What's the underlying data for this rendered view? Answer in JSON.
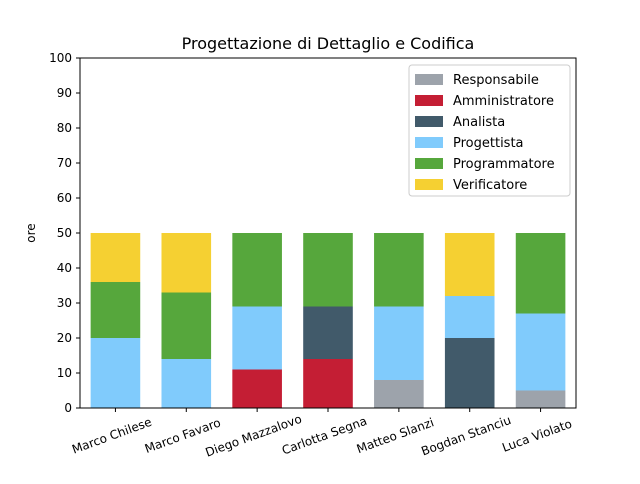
{
  "chart_data": {
    "type": "bar",
    "stacked": true,
    "title": "Progettazione di Dettaglio e Codifica",
    "xlabel": "",
    "ylabel": "ore",
    "ylim": [
      0,
      100
    ],
    "yticks": [
      0,
      10,
      20,
      30,
      40,
      50,
      60,
      70,
      80,
      90,
      100
    ],
    "categories": [
      "Marco Chilese",
      "Marco Favaro",
      "Diego Mazzalovo",
      "Carlotta Segna",
      "Matteo Slanzi",
      "Bogdan Stanciu",
      "Luca Violato"
    ],
    "series": [
      {
        "name": "Responsabile",
        "color": "#9da3ab",
        "values": [
          0,
          0,
          0,
          0,
          8,
          0,
          5
        ]
      },
      {
        "name": "Amministratore",
        "color": "#c41e34",
        "values": [
          0,
          0,
          11,
          14,
          0,
          0,
          0
        ]
      },
      {
        "name": "Analista",
        "color": "#415a6a",
        "values": [
          0,
          0,
          0,
          15,
          0,
          20,
          0
        ]
      },
      {
        "name": "Progettista",
        "color": "#80cbfc",
        "values": [
          20,
          14,
          18,
          0,
          21,
          12,
          22
        ]
      },
      {
        "name": "Programmatore",
        "color": "#56a73c",
        "values": [
          16,
          19,
          21,
          21,
          21,
          0,
          23
        ]
      },
      {
        "name": "Verificatore",
        "color": "#f5d032",
        "values": [
          14,
          17,
          0,
          0,
          0,
          18,
          0
        ]
      }
    ],
    "legend_position": "top-right",
    "grid": false
  }
}
